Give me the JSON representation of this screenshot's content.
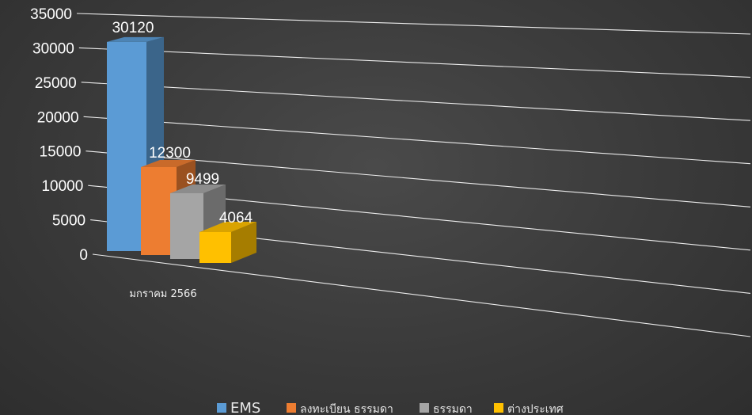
{
  "chart_data": {
    "type": "bar",
    "style": "3d-perspective",
    "title": "",
    "categories": [
      "มกราคม 2566"
    ],
    "series": [
      {
        "name": "EMS",
        "values": [
          30120
        ],
        "color": "#5b9bd5"
      },
      {
        "name": "ลงทะเบียน ธรรมดา",
        "values": [
          12300
        ],
        "color": "#ed7d31"
      },
      {
        "name": "ธรรมดา",
        "values": [
          9499
        ],
        "color": "#a5a5a5"
      },
      {
        "name": "ต่างประเทศ",
        "values": [
          4064
        ],
        "color": "#ffc000"
      }
    ],
    "ylim": [
      0,
      35000
    ],
    "yticks": [
      "0",
      "5000",
      "10000",
      "15000",
      "20000",
      "25000",
      "30000",
      "35000"
    ],
    "data_labels": [
      "30120",
      "12300",
      "9499",
      "4064"
    ],
    "grid": true,
    "legend_position": "bottom"
  },
  "colors": {
    "background": "#3a3a3a",
    "gridline": "#ffffff",
    "text": "#ffffff"
  }
}
